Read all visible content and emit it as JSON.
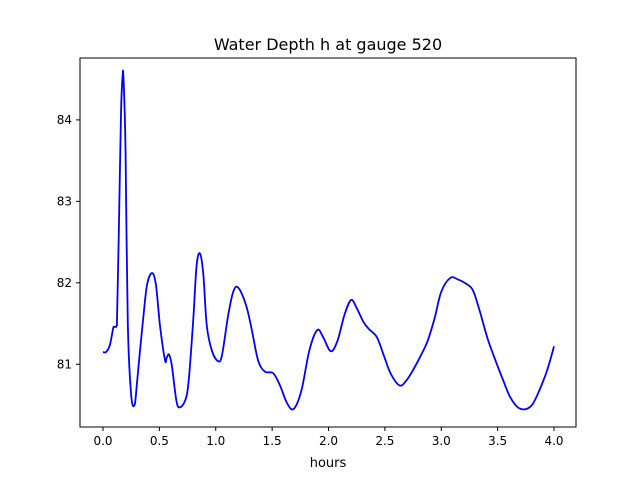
{
  "chart_data": {
    "type": "line",
    "title": "Water Depth h at gauge 520",
    "xlabel": "hours",
    "ylabel": "",
    "xlim": [
      -0.204,
      4.195
    ],
    "ylim": [
      80.23,
      84.76
    ],
    "xticks": [
      0.0,
      0.5,
      1.0,
      1.5,
      2.0,
      2.5,
      3.0,
      3.5,
      4.0
    ],
    "xtick_labels": [
      "0.0",
      "0.5",
      "1.0",
      "1.5",
      "2.0",
      "2.5",
      "3.0",
      "3.5",
      "4.0"
    ],
    "yticks": [
      81,
      82,
      83,
      84
    ],
    "ytick_labels": [
      "81",
      "82",
      "83",
      "84"
    ],
    "grid": false,
    "series": [
      {
        "name": "h",
        "color": "#0000ff",
        "x": [
          0,
          0.027,
          0.06,
          0.09,
          0.1,
          0.12,
          0.125,
          0.14,
          0.16,
          0.175,
          0.18,
          0.19,
          0.2,
          0.22,
          0.25,
          0.28,
          0.3,
          0.32,
          0.355,
          0.39,
          0.435,
          0.47,
          0.505,
          0.55,
          0.565,
          0.585,
          0.61,
          0.65,
          0.68,
          0.73,
          0.76,
          0.8,
          0.83,
          0.86,
          0.89,
          0.92,
          0.965,
          1.02,
          1.055,
          1.11,
          1.155,
          1.2,
          1.27,
          1.32,
          1.375,
          1.435,
          1.51,
          1.57,
          1.63,
          1.69,
          1.76,
          1.83,
          1.9,
          1.95,
          2.02,
          2.08,
          2.14,
          2.2,
          2.25,
          2.31,
          2.36,
          2.43,
          2.49,
          2.55,
          2.63,
          2.69,
          2.75,
          2.82,
          2.88,
          2.94,
          3.0,
          3.08,
          3.15,
          3.22,
          3.28,
          3.34,
          3.41,
          3.48,
          3.55,
          3.61,
          3.68,
          3.75,
          3.81,
          3.87,
          3.94,
          4.0
        ],
        "y": [
          81.15,
          81.15,
          81.23,
          81.44,
          81.46,
          81.47,
          81.6,
          82.6,
          84.1,
          84.56,
          84.55,
          84.2,
          83.6,
          81.5,
          80.62,
          80.5,
          80.75,
          81.05,
          81.54,
          81.97,
          82.12,
          81.97,
          81.48,
          81.05,
          81.08,
          81.12,
          80.99,
          80.56,
          80.47,
          80.56,
          80.8,
          81.54,
          82.21,
          82.36,
          82.1,
          81.48,
          81.17,
          81.04,
          81.11,
          81.6,
          81.89,
          81.94,
          81.72,
          81.42,
          81.05,
          80.91,
          80.89,
          80.74,
          80.53,
          80.45,
          80.68,
          81.17,
          81.42,
          81.34,
          81.16,
          81.29,
          81.6,
          81.79,
          81.69,
          81.52,
          81.43,
          81.33,
          81.11,
          80.89,
          80.74,
          80.8,
          80.93,
          81.11,
          81.29,
          81.56,
          81.89,
          82.06,
          82.04,
          81.99,
          81.91,
          81.66,
          81.32,
          81.05,
          80.8,
          80.6,
          80.47,
          80.45,
          80.51,
          80.68,
          80.93,
          81.22
        ]
      }
    ]
  }
}
